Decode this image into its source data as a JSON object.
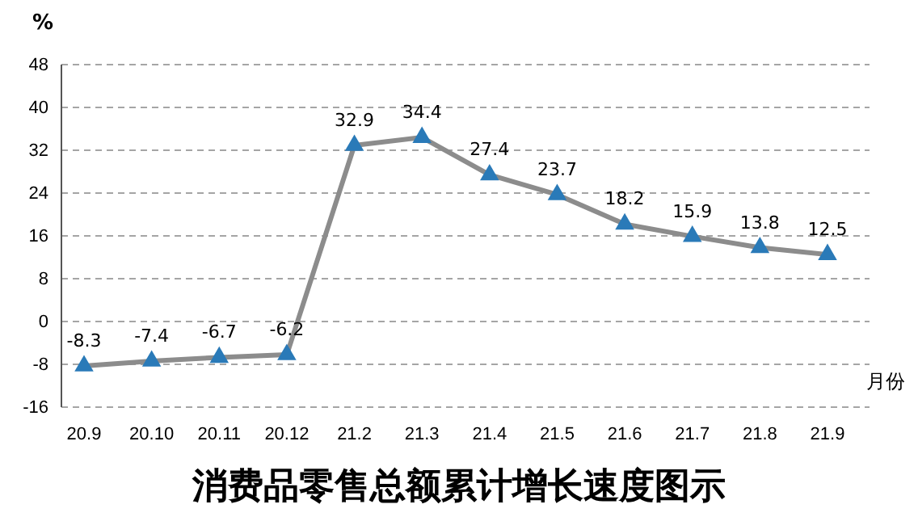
{
  "chart_data": {
    "type": "line",
    "title": "消费品零售总额累计增长速度图示",
    "ylabel": "%",
    "xlabel": "月份",
    "categories": [
      "20.9",
      "20.10",
      "20.11",
      "20.12",
      "21.2",
      "21.3",
      "21.4",
      "21.5",
      "21.6",
      "21.7",
      "21.8",
      "21.9"
    ],
    "series": [
      {
        "color": "#8c8c8c",
        "values": [
          -8.3,
          -7.4,
          -6.7,
          -6.2,
          32.9,
          34.4,
          27.4,
          23.7,
          18.2,
          15.9,
          13.8,
          12.5
        ]
      }
    ],
    "ylim": [
      -16,
      48
    ],
    "yticks": [
      -16,
      -8,
      0,
      8,
      16,
      24,
      32,
      40,
      48
    ],
    "grid": "y",
    "marker": "triangle",
    "data_labels": true
  }
}
